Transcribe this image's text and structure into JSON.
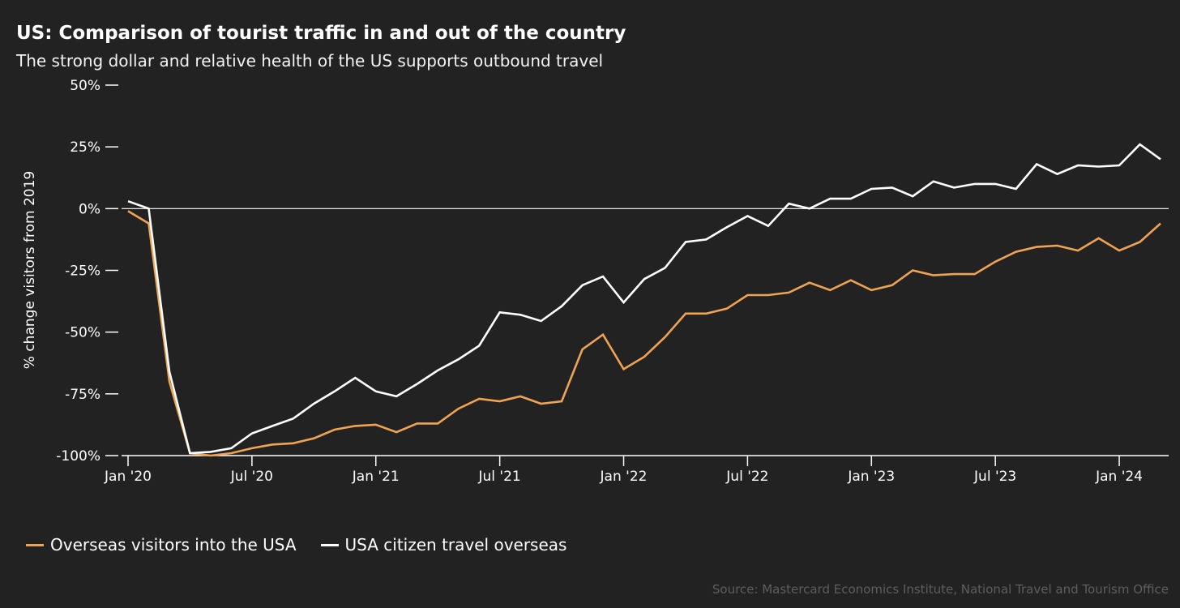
{
  "title": "US: Comparison of tourist traffic in and out of the country",
  "subtitle": "The strong dollar and relative health of the US supports outbound travel",
  "source": "Source: Mastercard Economics Institute, National Travel and Tourism Office",
  "colors": {
    "background": "#222222",
    "overseas_visitors": "#f0a452",
    "usa_citizens": "#ffffff",
    "axis": "#ffffff",
    "source_text": "#5e5e5e"
  },
  "chart_data": {
    "type": "line",
    "xlabel": "",
    "ylabel": "% change visitors from 2019",
    "ylim": [
      -100,
      50
    ],
    "y_ticks": [
      {
        "value": 50,
        "label": "50%"
      },
      {
        "value": 25,
        "label": "25%"
      },
      {
        "value": 0,
        "label": "0%"
      },
      {
        "value": -25,
        "label": "-25%"
      },
      {
        "value": -50,
        "label": "-50%"
      },
      {
        "value": -75,
        "label": "-75%"
      },
      {
        "value": -100,
        "label": "-100%"
      }
    ],
    "x_ticks": [
      {
        "date": "2020-01",
        "label": "Jan '20"
      },
      {
        "date": "2020-07",
        "label": "Jul '20"
      },
      {
        "date": "2021-01",
        "label": "Jan '21"
      },
      {
        "date": "2021-07",
        "label": "Jul '21"
      },
      {
        "date": "2022-01",
        "label": "Jan '22"
      },
      {
        "date": "2022-07",
        "label": "Jul '22"
      },
      {
        "date": "2023-01",
        "label": "Jan '23"
      },
      {
        "date": "2023-07",
        "label": "Jul '23"
      },
      {
        "date": "2024-01",
        "label": "Jan '24"
      }
    ],
    "x": [
      "2020-01",
      "2020-02",
      "2020-03",
      "2020-04",
      "2020-05",
      "2020-06",
      "2020-07",
      "2020-08",
      "2020-09",
      "2020-10",
      "2020-11",
      "2020-12",
      "2021-01",
      "2021-02",
      "2021-03",
      "2021-04",
      "2021-05",
      "2021-06",
      "2021-07",
      "2021-08",
      "2021-09",
      "2021-10",
      "2021-11",
      "2021-12",
      "2022-01",
      "2022-02",
      "2022-03",
      "2022-04",
      "2022-05",
      "2022-06",
      "2022-07",
      "2022-08",
      "2022-09",
      "2022-10",
      "2022-11",
      "2022-12",
      "2023-01",
      "2023-02",
      "2023-03",
      "2023-04",
      "2023-05",
      "2023-06",
      "2023-07",
      "2023-08",
      "2023-09",
      "2023-10",
      "2023-11",
      "2023-12",
      "2024-01",
      "2024-02",
      "2024-03"
    ],
    "series": [
      {
        "name": "Overseas visitors into the USA",
        "color": "#f0a452",
        "values": [
          -1,
          -6,
          -70,
          -99,
          -100,
          -99,
          -97,
          -95.5,
          -95,
          -93,
          -89.5,
          -88,
          -87.5,
          -90.5,
          -87,
          -87,
          -81,
          -77,
          -78,
          -76,
          -79,
          -78,
          -57,
          -51,
          -65,
          -60,
          -52,
          -42.5,
          -42.5,
          -40.5,
          -35,
          -35,
          -34,
          -30,
          -33,
          -29,
          -33,
          -31,
          -25,
          -27,
          -26.5,
          -26.5,
          -21.5,
          -17.5,
          -15.5,
          -15,
          -17,
          -12,
          -17,
          -13.5,
          -6
        ]
      },
      {
        "name": "USA citizen travel overseas",
        "color": "#ffffff",
        "values": [
          3,
          0,
          -66,
          -99,
          -98.5,
          -97,
          -91,
          -88,
          -85,
          -79,
          -74,
          -68.5,
          -74,
          -76,
          -71,
          -65.5,
          -61,
          -55.5,
          -42,
          -43,
          -45.5,
          -39.5,
          -31,
          -27.5,
          -38,
          -28.5,
          -24,
          -13.5,
          -12.5,
          -7.5,
          -3,
          -7,
          2,
          0,
          4,
          4,
          8,
          8.5,
          5,
          11,
          8.5,
          10,
          10,
          8,
          18,
          14,
          17.5,
          17,
          17.5,
          26,
          20
        ]
      }
    ],
    "grid": false,
    "legend_position": "bottom-left"
  }
}
